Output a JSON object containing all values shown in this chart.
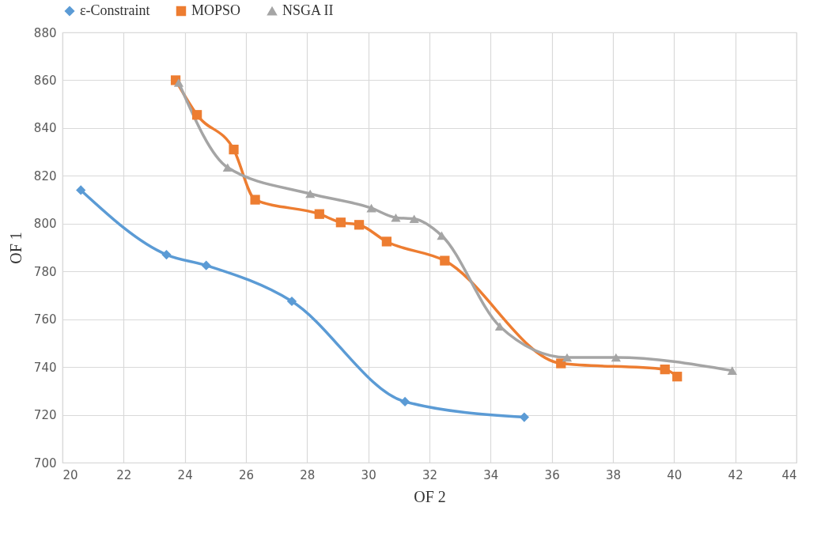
{
  "chart_data": {
    "type": "line",
    "xlabel": "OF 2",
    "ylabel": "OF 1",
    "xlim": [
      20,
      44
    ],
    "xticks": [
      20,
      22,
      24,
      26,
      28,
      30,
      32,
      34,
      36,
      38,
      40,
      42,
      44
    ],
    "ylim": [
      700,
      880
    ],
    "yticks": [
      700,
      720,
      740,
      760,
      780,
      800,
      820,
      840,
      860,
      880
    ],
    "grid": true,
    "legend": "top",
    "line_style": "solid",
    "series": [
      {
        "name": "ε-Constraint",
        "color": "#5b9bd5",
        "marker": "diamond",
        "x": [
          20.6,
          23.4,
          24.7,
          27.5,
          31.2,
          35.1
        ],
        "values": [
          814,
          787,
          782.5,
          767.5,
          725.5,
          719
        ]
      },
      {
        "name": "MOPSO",
        "color": "#ed7d31",
        "marker": "square",
        "x": [
          23.7,
          24.4,
          25.6,
          26.3,
          28.4,
          29.1,
          29.7,
          30.6,
          32.5,
          36.3,
          39.7,
          40.1
        ],
        "values": [
          860,
          845.5,
          831,
          810,
          804,
          800.5,
          799.5,
          792.5,
          784.5,
          741.5,
          739,
          736
        ]
      },
      {
        "name": "NSGA II",
        "color": "#a5a5a5",
        "marker": "triangle",
        "x": [
          23.8,
          25.4,
          28.1,
          30.1,
          30.9,
          31.5,
          32.4,
          34.3,
          36.5,
          38.1,
          41.9
        ],
        "values": [
          859,
          823.5,
          812.5,
          806.5,
          802.5,
          802,
          795,
          757,
          744,
          744,
          738.5
        ]
      }
    ]
  }
}
